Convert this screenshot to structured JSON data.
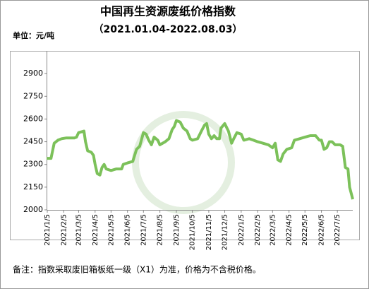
{
  "chart_data": {
    "type": "line",
    "title": "中国再生资源废纸价格指数",
    "subtitle": "（2021.01.04-2022.08.03）",
    "unit_label": "单位：元/吨",
    "note": "备注：指数采取废旧箱板纸一级（X1）为准，价格为不含税价格。",
    "x": [
      "2021/1/4",
      "2021/1/12",
      "2021/1/18",
      "2021/1/25",
      "2021/2/1",
      "2021/2/10",
      "2021/2/25",
      "2021/3/1",
      "2021/3/5",
      "2021/3/15",
      "2021/3/18",
      "2021/3/22",
      "2021/3/29",
      "2021/4/2",
      "2021/4/5",
      "2021/4/9",
      "2021/4/14",
      "2021/4/18",
      "2021/4/22",
      "2021/4/26",
      "2021/5/5",
      "2021/5/15",
      "2021/5/25",
      "2021/5/28",
      "2021/6/5",
      "2021/6/15",
      "2021/6/22",
      "2021/6/28",
      "2021/7/5",
      "2021/7/10",
      "2021/7/15",
      "2021/7/20",
      "2021/7/25",
      "2021/8/1",
      "2021/8/5",
      "2021/8/15",
      "2021/8/22",
      "2021/8/28",
      "2021/9/1",
      "2021/9/5",
      "2021/9/12",
      "2021/9/18",
      "2021/9/25",
      "2021/10/1",
      "2021/10/5",
      "2021/10/15",
      "2021/10/22",
      "2021/10/28",
      "2021/11/1",
      "2021/11/5",
      "2021/11/10",
      "2021/11/15",
      "2021/11/20",
      "2021/11/25",
      "2021/11/28",
      "2021/12/5",
      "2021/12/12",
      "2021/12/18",
      "2021/12/22",
      "2021/12/28",
      "2022/1/5",
      "2022/1/10",
      "2022/1/20",
      "2022/1/28",
      "2022/2/5",
      "2022/2/15",
      "2022/2/25",
      "2022/3/1",
      "2022/3/5",
      "2022/3/10",
      "2022/3/15",
      "2022/3/20",
      "2022/3/25",
      "2022/4/1",
      "2022/4/10",
      "2022/4/15",
      "2022/4/25",
      "2022/5/5",
      "2022/5/15",
      "2022/5/25",
      "2022/6/1",
      "2022/6/5",
      "2022/6/10",
      "2022/6/15",
      "2022/6/20",
      "2022/6/25",
      "2022/7/1",
      "2022/7/10",
      "2022/7/15",
      "2022/7/20",
      "2022/7/25",
      "2022/7/28",
      "2022/8/3"
    ],
    "series": [
      {
        "color": "#7cc15a",
        "values": [
          2340,
          2340,
          2440,
          2460,
          2470,
          2475,
          2475,
          2480,
          2510,
          2520,
          2450,
          2390,
          2380,
          2360,
          2300,
          2240,
          2230,
          2280,
          2300,
          2270,
          2260,
          2270,
          2270,
          2300,
          2310,
          2320,
          2400,
          2420,
          2510,
          2500,
          2460,
          2430,
          2480,
          2460,
          2430,
          2450,
          2470,
          2530,
          2550,
          2590,
          2580,
          2540,
          2520,
          2470,
          2460,
          2470,
          2520,
          2560,
          2570,
          2500,
          2470,
          2490,
          2470,
          2470,
          2540,
          2570,
          2520,
          2440,
          2470,
          2510,
          2500,
          2460,
          2470,
          2460,
          2450,
          2440,
          2430,
          2420,
          2410,
          2440,
          2330,
          2320,
          2370,
          2400,
          2410,
          2460,
          2470,
          2480,
          2490,
          2490,
          2460,
          2460,
          2400,
          2410,
          2450,
          2450,
          2430,
          2430,
          2420,
          2280,
          2270,
          2150,
          2070
        ]
      }
    ],
    "xticks": [
      "2021/1/5",
      "2021/2/5",
      "2021/3/5",
      "2021/4/5",
      "2021/5/5",
      "2021/6/5",
      "2021/7/5",
      "2021/8/5",
      "2021/9/5",
      "2021/10/5",
      "2021/11/5",
      "2021/12/5",
      "2022/1/5",
      "2022/2/5",
      "2022/3/5",
      "2022/4/5",
      "2022/5/5",
      "2022/6/5",
      "2022/7/5"
    ],
    "xlim": [
      "2021/1/5",
      "2022/8/3"
    ],
    "ylim": [
      2000,
      3050
    ],
    "yticks": [
      2000,
      2150,
      2300,
      2450,
      2600,
      2750,
      2900
    ]
  }
}
